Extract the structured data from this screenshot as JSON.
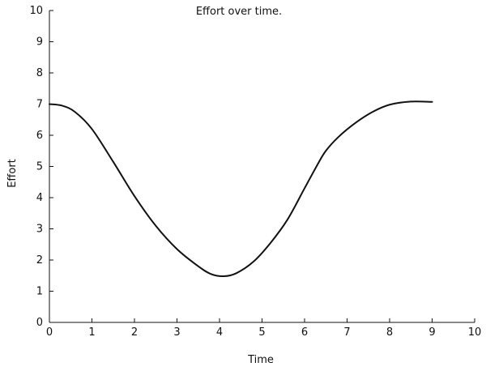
{
  "chart_data": {
    "type": "line",
    "title": "Effort over time.",
    "xlabel": "Time",
    "ylabel": "Effort",
    "xlim": [
      0,
      10
    ],
    "ylim": [
      0,
      10
    ],
    "x_ticks": [
      "0",
      "1",
      "2",
      "3",
      "4",
      "5",
      "6",
      "7",
      "8",
      "9",
      "10"
    ],
    "y_ticks": [
      "0",
      "1",
      "2",
      "3",
      "4",
      "5",
      "6",
      "7",
      "8",
      "9",
      "10"
    ],
    "grid": false,
    "legend": "none",
    "line_color": "#111111",
    "series": [
      {
        "x": [
          0,
          0.3,
          0.6,
          1.0,
          1.5,
          2.0,
          2.5,
          3.0,
          3.5,
          3.8,
          4.1,
          4.4,
          4.8,
          5.2,
          5.6,
          6.0,
          6.3,
          6.5,
          6.8,
          7.2,
          7.6,
          8.0,
          8.5,
          9.0
        ],
        "y": [
          7.0,
          6.95,
          6.75,
          6.2,
          5.15,
          4.05,
          3.1,
          2.35,
          1.8,
          1.55,
          1.48,
          1.58,
          1.95,
          2.55,
          3.3,
          4.3,
          5.05,
          5.5,
          5.95,
          6.4,
          6.75,
          6.98,
          7.08,
          7.07
        ]
      }
    ]
  }
}
